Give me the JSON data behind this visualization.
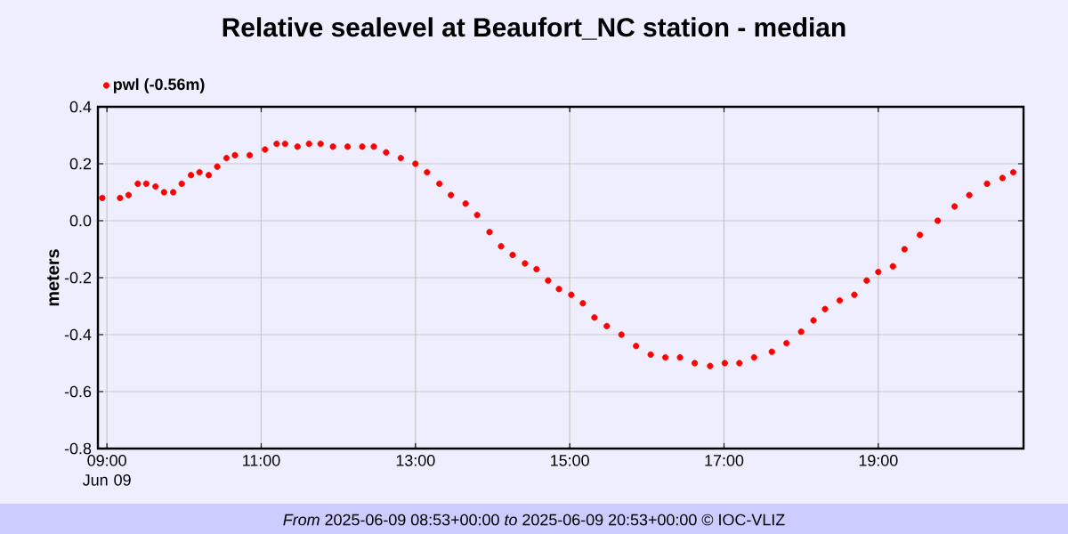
{
  "chart_data": {
    "type": "scatter",
    "title": "Relative sealevel at Beaufort_NC station - median",
    "ylabel": "meters",
    "annotations": [
      "*From* 2025-06-09 08:53+00:00 *to* 2025-06-09 20:53+00:00 © IOC-VLIZ"
    ],
    "xlim": [
      8.883,
      20.883
    ],
    "xticks": [
      {
        "value": 9,
        "label": "09:00 Jun 09"
      },
      {
        "value": 11,
        "label": "11:00"
      },
      {
        "value": 13,
        "label": "13:00"
      },
      {
        "value": 15,
        "label": "15:00"
      },
      {
        "value": 17,
        "label": "17:00"
      },
      {
        "value": 19,
        "label": "19:00"
      }
    ],
    "ylim": [
      -0.8,
      0.4
    ],
    "yticks": [
      {
        "value": -0.8,
        "label": "-0.8"
      },
      {
        "value": -0.6,
        "label": "-0.6"
      },
      {
        "value": -0.4,
        "label": "-0.4"
      },
      {
        "value": -0.2,
        "label": "-0.2"
      },
      {
        "value": 0,
        "label": "0.0"
      },
      {
        "value": 0.2,
        "label": "0.2"
      },
      {
        "value": 0.4,
        "label": "0.4"
      }
    ],
    "grid": true,
    "legend": "top left",
    "marker": "circle",
    "series": [
      {
        "name": "pwl (-0.56m)",
        "color": "#ff0000",
        "x": [
          8.94,
          9.17,
          9.28,
          9.4,
          9.51,
          9.63,
          9.74,
          9.86,
          9.97,
          10.09,
          10.2,
          10.32,
          10.43,
          10.55,
          10.66,
          10.85,
          11.05,
          11.2,
          11.31,
          11.47,
          11.62,
          11.77,
          11.93,
          12.12,
          12.31,
          12.46,
          12.62,
          12.81,
          13.0,
          13.15,
          13.31,
          13.46,
          13.65,
          13.8,
          13.96,
          14.11,
          14.26,
          14.42,
          14.57,
          14.72,
          14.86,
          15.02,
          15.17,
          15.32,
          15.48,
          15.67,
          15.86,
          16.05,
          16.24,
          16.43,
          16.62,
          16.82,
          17.01,
          17.2,
          17.39,
          17.62,
          17.81,
          18.0,
          18.16,
          18.31,
          18.5,
          18.69,
          18.85,
          19.0,
          19.19,
          19.34,
          19.54,
          19.77,
          19.99,
          20.18,
          20.41,
          20.61,
          20.75
        ],
        "values": [
          0.08,
          0.08,
          0.09,
          0.13,
          0.13,
          0.12,
          0.1,
          0.1,
          0.13,
          0.16,
          0.17,
          0.16,
          0.19,
          0.22,
          0.23,
          0.23,
          0.25,
          0.27,
          0.27,
          0.26,
          0.27,
          0.27,
          0.26,
          0.26,
          0.26,
          0.26,
          0.24,
          0.22,
          0.2,
          0.17,
          0.13,
          0.09,
          0.06,
          0.02,
          -0.04,
          -0.09,
          -0.12,
          -0.15,
          -0.17,
          -0.21,
          -0.24,
          -0.26,
          -0.29,
          -0.34,
          -0.37,
          -0.4,
          -0.44,
          -0.47,
          -0.48,
          -0.48,
          -0.5,
          -0.51,
          -0.5,
          -0.5,
          -0.48,
          -0.46,
          -0.43,
          -0.39,
          -0.35,
          -0.31,
          -0.28,
          -0.26,
          -0.21,
          -0.18,
          -0.16,
          -0.1,
          -0.05,
          0.0,
          0.05,
          0.09,
          0.13,
          0.15,
          0.17
        ]
      }
    ]
  }
}
